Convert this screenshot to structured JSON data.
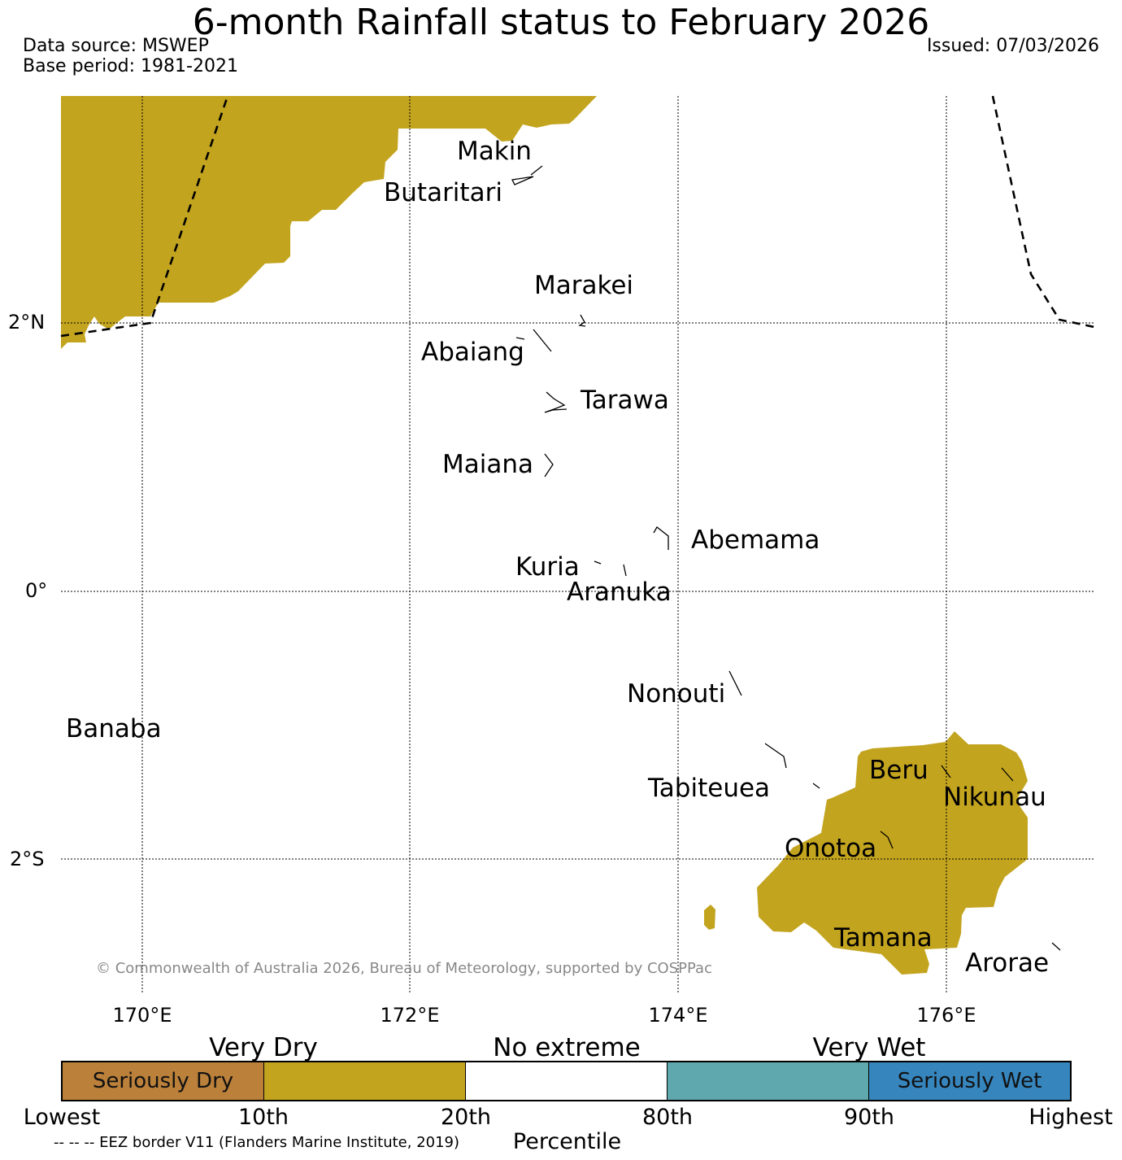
{
  "header": {
    "title": "6-month Rainfall status to February 2026",
    "data_source": "Data source: MSWEP",
    "base_period": "Base period: 1981-2021",
    "issued": "Issued: 07/03/2026"
  },
  "map": {
    "islands": [
      "Makin",
      "Butaritari",
      "Marakei",
      "Abaiang",
      "Tarawa",
      "Maiana",
      "Abemama",
      "Kuria",
      "Aranuka",
      "Nonouti",
      "Banaba",
      "Beru",
      "Nikunau",
      "Tabiteuea",
      "Onotoa",
      "Tamana",
      "Arorae"
    ],
    "lat_labels": [
      "2°N",
      "0°",
      "2°S"
    ],
    "lon_labels": [
      "170°E",
      "172°E",
      "174°E",
      "176°E"
    ],
    "copyright": "© Commonwealth of Australia 2026, Bureau of Meteorology, supported by COSPPac",
    "very_dry_color": "#c3a41f"
  },
  "legend": {
    "categories": [
      "Very Dry",
      "No extreme",
      "Very Wet"
    ],
    "segments": [
      {
        "label": "Seriously Dry",
        "color": "#bb803a"
      },
      {
        "label": "",
        "color": "#c3a41f"
      },
      {
        "label": "",
        "color": "#ffffff"
      },
      {
        "label": "",
        "color": "#5fa9ae"
      },
      {
        "label": "Seriously Wet",
        "color": "#3685bd"
      }
    ],
    "ticks": [
      "Lowest",
      "10th",
      "20th",
      "80th",
      "90th",
      "Highest"
    ],
    "axis_title": "Percentile",
    "eez_note": "-- -- -- EEZ border V11 (Flanders Marine Institute, 2019)"
  }
}
